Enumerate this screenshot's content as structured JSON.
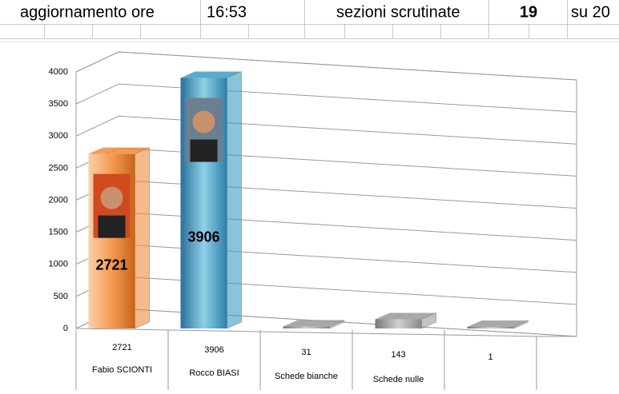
{
  "header": {
    "label": "aggiornamento ore",
    "time": "16:53",
    "sections_label": "sezioni scrutinate",
    "sections_done": "19",
    "sections_total": "su 20"
  },
  "chart_data": {
    "type": "bar3d",
    "categories": [
      "Fabio SCIONTI",
      "Rocco BIASI",
      "Schede bianche",
      "Schede nulle",
      null
    ],
    "values": [
      2721,
      3906,
      31,
      143,
      1
    ],
    "colors": [
      "#f08a3c",
      "#3a9fc2",
      "#9a9a9a",
      "#9a9a9a",
      "#9a9a9a"
    ],
    "labeled": [
      true,
      true,
      false,
      false,
      false
    ],
    "ylim": [
      0,
      4000
    ],
    "yticks": [
      0,
      500,
      1000,
      1500,
      2000,
      2500,
      3000,
      3500,
      4000
    ],
    "grid": true
  }
}
